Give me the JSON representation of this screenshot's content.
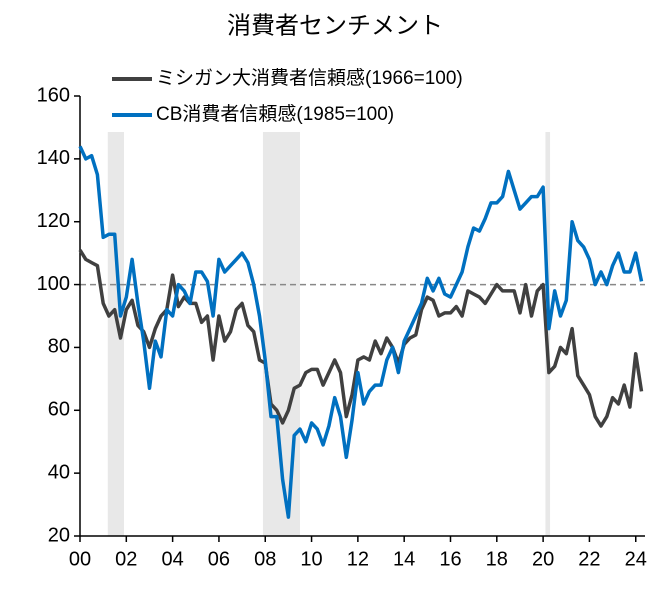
{
  "chart_data": {
    "type": "line",
    "title": "消費者センチメント",
    "x": [
      0,
      0.25,
      0.5,
      0.75,
      1,
      1.25,
      1.5,
      1.75,
      2,
      2.25,
      2.5,
      2.75,
      3,
      3.25,
      3.5,
      3.75,
      4,
      4.25,
      4.5,
      4.75,
      5,
      5.25,
      5.5,
      5.75,
      6,
      6.25,
      6.5,
      6.75,
      7,
      7.25,
      7.5,
      7.75,
      8,
      8.25,
      8.5,
      8.75,
      9,
      9.25,
      9.5,
      9.75,
      10,
      10.25,
      10.5,
      10.75,
      11,
      11.25,
      11.5,
      11.75,
      12,
      12.25,
      12.5,
      12.75,
      13,
      13.25,
      13.5,
      13.75,
      14,
      14.25,
      14.5,
      14.75,
      15,
      15.25,
      15.5,
      15.75,
      16,
      16.25,
      16.5,
      16.75,
      17,
      17.25,
      17.5,
      17.75,
      18,
      18.25,
      18.5,
      18.75,
      19,
      19.25,
      19.5,
      19.75,
      20,
      20.25,
      20.5,
      20.75,
      21,
      21.25,
      21.5,
      21.75,
      22,
      22.25,
      22.5,
      22.75,
      23,
      23.25,
      23.5,
      23.75,
      24,
      24.25
    ],
    "series": [
      {
        "name": "ミシガン大消費者信頼感(1966=100)",
        "color": "#404040",
        "values": [
          111,
          108,
          107,
          106,
          94,
          90,
          92,
          83,
          92,
          95,
          87,
          85,
          80,
          86,
          90,
          92,
          103,
          93,
          96,
          94,
          94,
          88,
          90,
          76,
          90,
          82,
          85,
          92,
          94,
          87,
          85,
          76,
          75,
          62,
          60,
          56,
          60,
          67,
          68,
          72,
          73,
          73,
          68,
          72,
          76,
          72,
          58,
          65,
          76,
          77,
          76,
          82,
          78,
          83,
          80,
          75,
          81,
          83,
          84,
          92,
          96,
          95,
          90,
          91,
          91,
          93,
          90,
          98,
          97,
          96,
          94,
          97,
          100,
          98,
          98,
          98,
          91,
          100,
          90,
          98,
          100,
          72,
          74,
          80,
          78,
          86,
          71,
          68,
          65,
          58,
          55,
          58,
          64,
          62,
          68,
          61,
          78,
          66
        ]
      },
      {
        "name": "CB消費者信頼感(1985=100)",
        "color": "#0070c0",
        "values": [
          144,
          140,
          141,
          135,
          115,
          116,
          116,
          90,
          96,
          108,
          94,
          82,
          67,
          82,
          77,
          92,
          90,
          100,
          98,
          94,
          104,
          104,
          101,
          90,
          108,
          104,
          106,
          108,
          110,
          107,
          100,
          90,
          76,
          58,
          58,
          38,
          26,
          52,
          54,
          50,
          56,
          54,
          49,
          55,
          64,
          58,
          45,
          57,
          72,
          62,
          66,
          68,
          68,
          76,
          80,
          72,
          82,
          86,
          90,
          94,
          102,
          98,
          102,
          97,
          96,
          100,
          104,
          112,
          118,
          117,
          121,
          126,
          126,
          128,
          136,
          130,
          124,
          126,
          128,
          128,
          131,
          86,
          98,
          90,
          95,
          120,
          114,
          112,
          108,
          100,
          104,
          100,
          106,
          110,
          104,
          104,
          110,
          101
        ]
      }
    ],
    "xlim": [
      0,
      24.4
    ],
    "ylim": [
      20,
      160
    ],
    "xticks": [
      {
        "value": 0,
        "label": "00"
      },
      {
        "value": 2,
        "label": "02"
      },
      {
        "value": 4,
        "label": "04"
      },
      {
        "value": 6,
        "label": "06"
      },
      {
        "value": 8,
        "label": "08"
      },
      {
        "value": 10,
        "label": "10"
      },
      {
        "value": 12,
        "label": "12"
      },
      {
        "value": 14,
        "label": "14"
      },
      {
        "value": 16,
        "label": "16"
      },
      {
        "value": 18,
        "label": "18"
      },
      {
        "value": 20,
        "label": "20"
      },
      {
        "value": 22,
        "label": "22"
      },
      {
        "value": 24,
        "label": "24"
      }
    ],
    "yticks": [
      20,
      40,
      60,
      80,
      100,
      120,
      140,
      160
    ],
    "reference_line": 100,
    "shaded_ranges": [
      [
        1.2,
        1.9
      ],
      [
        7.9,
        9.5
      ],
      [
        20.1,
        20.3
      ]
    ],
    "shade_color": "#e8e8e8"
  }
}
